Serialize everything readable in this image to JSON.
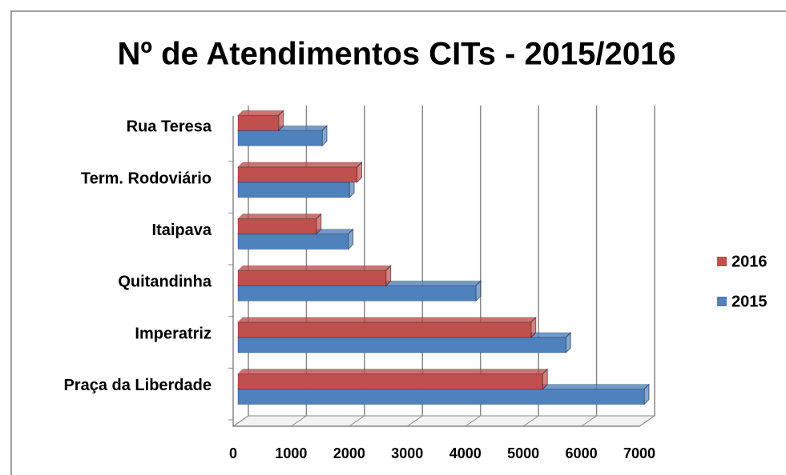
{
  "chart_data": {
    "type": "bar",
    "orientation": "horizontal",
    "three_d": true,
    "title": "Nº de Atendimentos CITs - 2015/2016",
    "categories": [
      "Praça da Liberdade",
      "Imperatriz",
      "Quitandinha",
      "Itaipava",
      "Term. Rodoviário",
      "Rua Teresa"
    ],
    "series": [
      {
        "name": "2015",
        "color": "#4f81bd",
        "values": [
          7000,
          5650,
          4100,
          1900,
          1920,
          1450
        ]
      },
      {
        "name": "2016",
        "color": "#c0504d",
        "values": [
          5250,
          5050,
          2550,
          1350,
          2050,
          700
        ]
      }
    ],
    "xlim": [
      0,
      7000
    ],
    "xticks": [
      0,
      1000,
      2000,
      3000,
      4000,
      5000,
      6000,
      7000
    ],
    "grid": true,
    "legend": "right"
  }
}
